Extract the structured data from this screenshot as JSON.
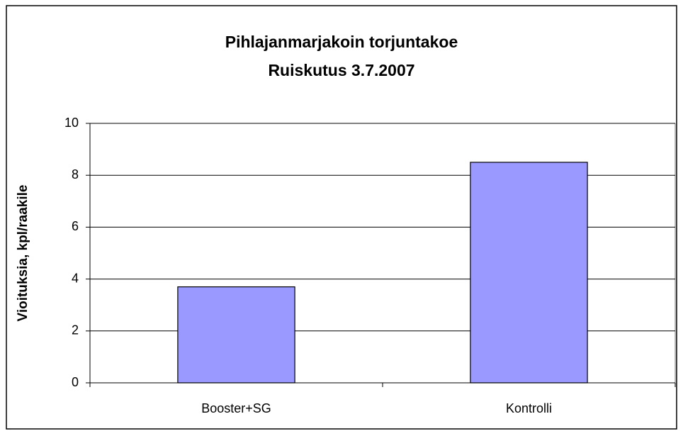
{
  "chart_data": {
    "type": "bar",
    "title": "Pihlajanmarjakoin torjuntakoe",
    "subtitle": "Ruiskutus 3.7.2007",
    "y_label": "Vioituksia, kpl/raakile",
    "categories": [
      "Booster+SG",
      "Kontrolli"
    ],
    "values": [
      3.7,
      8.5
    ],
    "color": "#9999ff",
    "ylim": [
      0,
      10
    ],
    "yticks": [
      0,
      2,
      4,
      6,
      8,
      10
    ],
    "grid": true
  }
}
